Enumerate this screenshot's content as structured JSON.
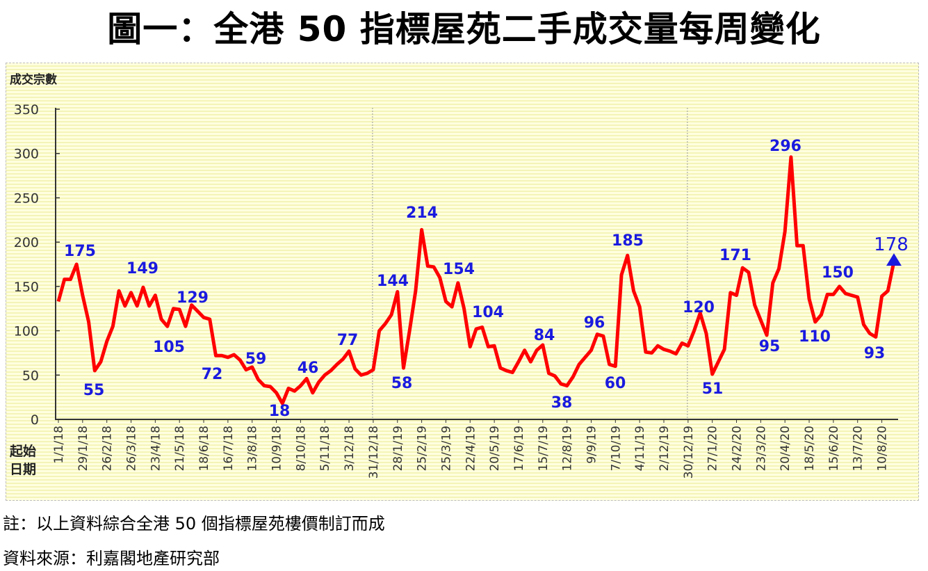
{
  "title": "圖一：全港 50 指標屋苑二手成交量每周變化",
  "chart_data": {
    "type": "line",
    "title": "圖一：全港 50 指標屋苑二手成交量每周變化",
    "ylabel": "成交宗數",
    "xlabel": "起始日期",
    "ylim": [
      0,
      350
    ],
    "yticks": [
      0,
      50,
      100,
      150,
      200,
      250,
      300,
      350
    ],
    "x_frequency": "weekly",
    "xtick_labels": [
      "1/1/18",
      "29/1/18",
      "26/2/18",
      "26/3/18",
      "23/4/18",
      "21/5/18",
      "18/6/18",
      "16/7/18",
      "13/8/18",
      "10/9/18",
      "8/10/18",
      "5/11/18",
      "3/12/18",
      "31/12/18",
      "28/1/19",
      "25/2/19",
      "25/3/19",
      "22/4/19",
      "20/5/19",
      "17/6/19",
      "15/7/19",
      "12/8/19",
      "9/9/19",
      "7/10/19",
      "4/11/19",
      "2/12/19",
      "30/12/19",
      "27/1/20",
      "24/2/20",
      "23/3/20",
      "20/4/20",
      "18/5/20",
      "15/6/20",
      "13/7/20",
      "10/8/20"
    ],
    "series": [
      {
        "color": "#ff0000",
        "values": [
          133,
          158,
          158,
          175,
          140,
          110,
          55,
          65,
          88,
          105,
          145,
          128,
          143,
          128,
          149,
          128,
          140,
          113,
          105,
          125,
          124,
          105,
          129,
          122,
          115,
          113,
          72,
          72,
          70,
          73,
          67,
          56,
          59,
          45,
          38,
          37,
          30,
          18,
          35,
          32,
          38,
          46,
          30,
          42,
          50,
          55,
          62,
          68,
          77,
          57,
          50,
          52,
          56,
          100,
          108,
          118,
          144,
          58,
          100,
          145,
          214,
          173,
          172,
          160,
          133,
          127,
          154,
          125,
          82,
          102,
          104,
          82,
          83,
          58,
          55,
          53,
          65,
          78,
          65,
          78,
          84,
          52,
          49,
          40,
          38,
          48,
          62,
          70,
          78,
          96,
          94,
          62,
          60,
          163,
          185,
          145,
          127,
          76,
          75,
          83,
          79,
          77,
          74,
          86,
          83,
          100,
          120,
          97,
          51,
          65,
          79,
          143,
          140,
          171,
          166,
          129,
          112,
          95,
          154,
          170,
          212,
          296,
          196,
          196,
          136,
          110,
          118,
          141,
          141,
          150,
          142,
          140,
          138,
          107,
          97,
          93,
          139,
          145,
          178
        ]
      }
    ],
    "data_labels": [
      175,
      55,
      149,
      105,
      129,
      72,
      59,
      18,
      46,
      77,
      144,
      58,
      214,
      154,
      104,
      84,
      38,
      96,
      60,
      185,
      120,
      51,
      171,
      95,
      296,
      110,
      150,
      93,
      178
    ],
    "label_color": "#1a1adf",
    "last_point_marker": "triangle-up",
    "grid": false,
    "year_dividers": [
      "31/12/18",
      "30/12/19"
    ]
  },
  "notes": [
    "註：以上資料綜合全港 50 個指標屋苑樓價制訂而成",
    "資料來源：利嘉閣地產研究部"
  ]
}
